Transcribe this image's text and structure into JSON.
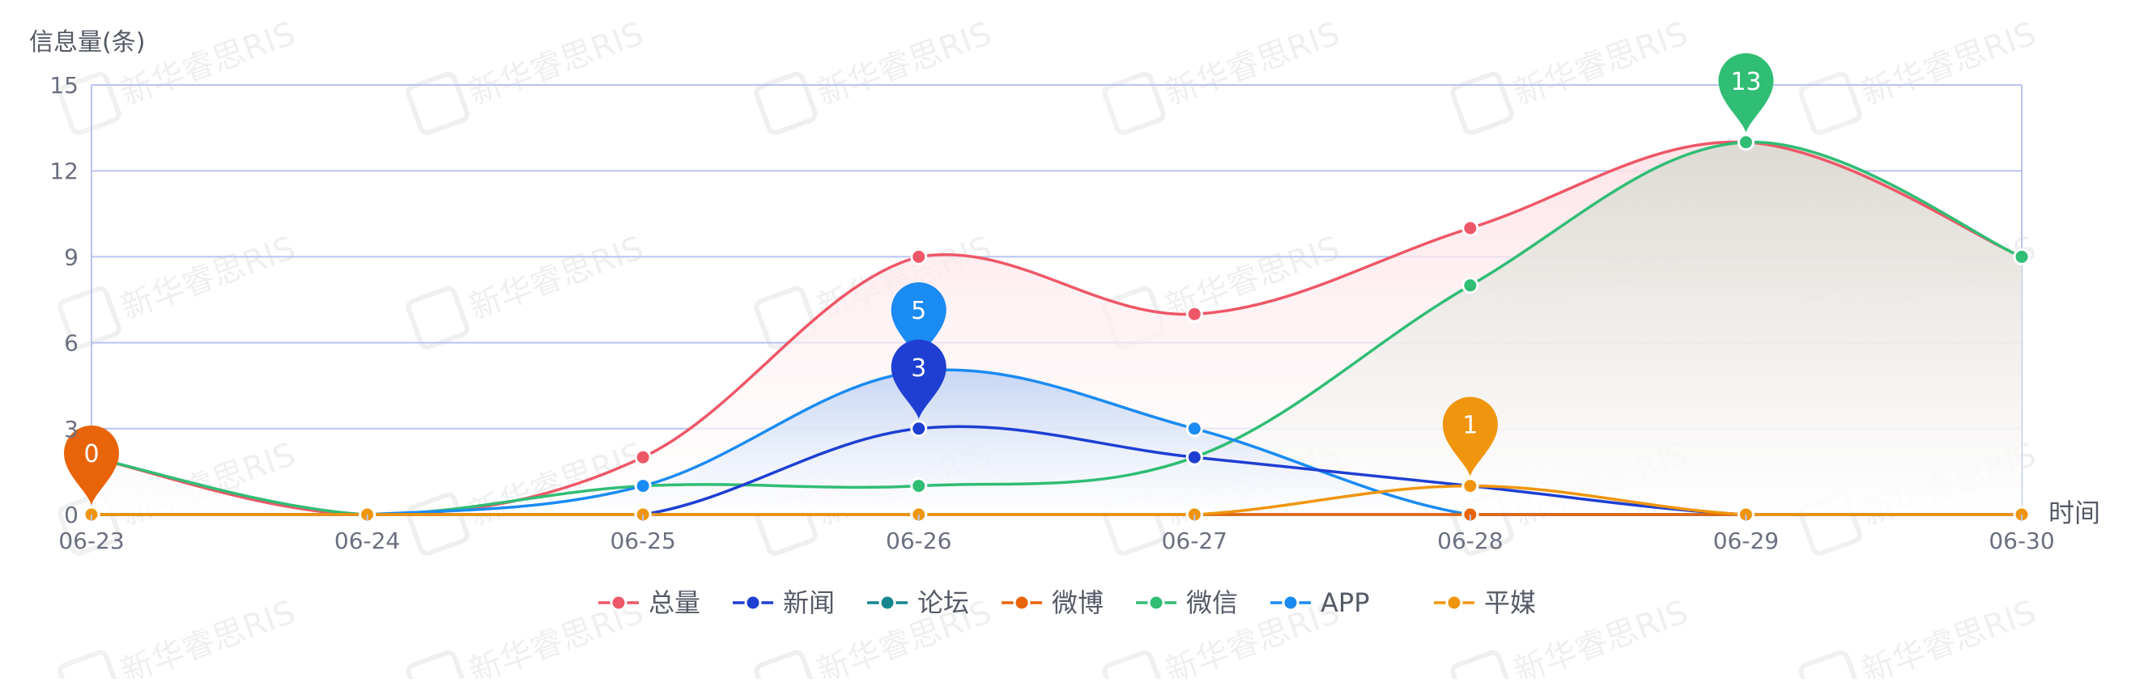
{
  "chart_data": {
    "type": "line",
    "ylabel": "信息量(条)",
    "xlabel": "时间",
    "categories": [
      "06-23",
      "06-24",
      "06-25",
      "06-26",
      "06-27",
      "06-28",
      "06-29",
      "06-30"
    ],
    "ylim": [
      0,
      15
    ],
    "yticks": [
      0,
      3,
      6,
      9,
      12,
      15
    ],
    "grid": true,
    "legend_position": "bottom",
    "watermark": "新华睿思RIS",
    "series": [
      {
        "name": "总量",
        "color": "#ee5767",
        "values": [
          2,
          0,
          2,
          9,
          7,
          10,
          13,
          9
        ],
        "area": true
      },
      {
        "name": "新闻",
        "color": "#1e3fd2",
        "values": [
          0,
          0,
          0,
          3,
          2,
          1,
          0,
          0
        ],
        "area": false
      },
      {
        "name": "论坛",
        "color": "#14878c",
        "values": [
          0,
          0,
          0,
          0,
          0,
          0,
          0,
          0
        ],
        "area": false
      },
      {
        "name": "微博",
        "color": "#e96408",
        "values": [
          0,
          0,
          0,
          0,
          0,
          0,
          0,
          0
        ],
        "area": false
      },
      {
        "name": "微信",
        "color": "#30bd74",
        "values": [
          2,
          0,
          1,
          1,
          2,
          8,
          13,
          9
        ],
        "area": true
      },
      {
        "name": "APP",
        "color": "#1a8bf2",
        "values": [
          0,
          0,
          1,
          5,
          3,
          0,
          0,
          0
        ],
        "area": true
      },
      {
        "name": "平媒",
        "color": "#f0950e",
        "values": [
          0,
          0,
          0,
          0,
          0,
          1,
          0,
          0
        ],
        "area": false
      }
    ],
    "annotations": [
      {
        "series": "微博",
        "category": "06-23",
        "value": 0,
        "label": "0",
        "color": "#e96408"
      },
      {
        "series": "APP",
        "category": "06-26",
        "value": 5,
        "label": "5",
        "color": "#1a8bf2"
      },
      {
        "series": "新闻",
        "category": "06-26",
        "value": 3,
        "label": "3",
        "color": "#1e3fd2"
      },
      {
        "series": "平媒",
        "category": "06-28",
        "value": 1,
        "label": "1",
        "color": "#f0950e"
      },
      {
        "series": "微信",
        "category": "06-29",
        "value": 13,
        "label": "13",
        "color": "#30bd74"
      }
    ]
  }
}
